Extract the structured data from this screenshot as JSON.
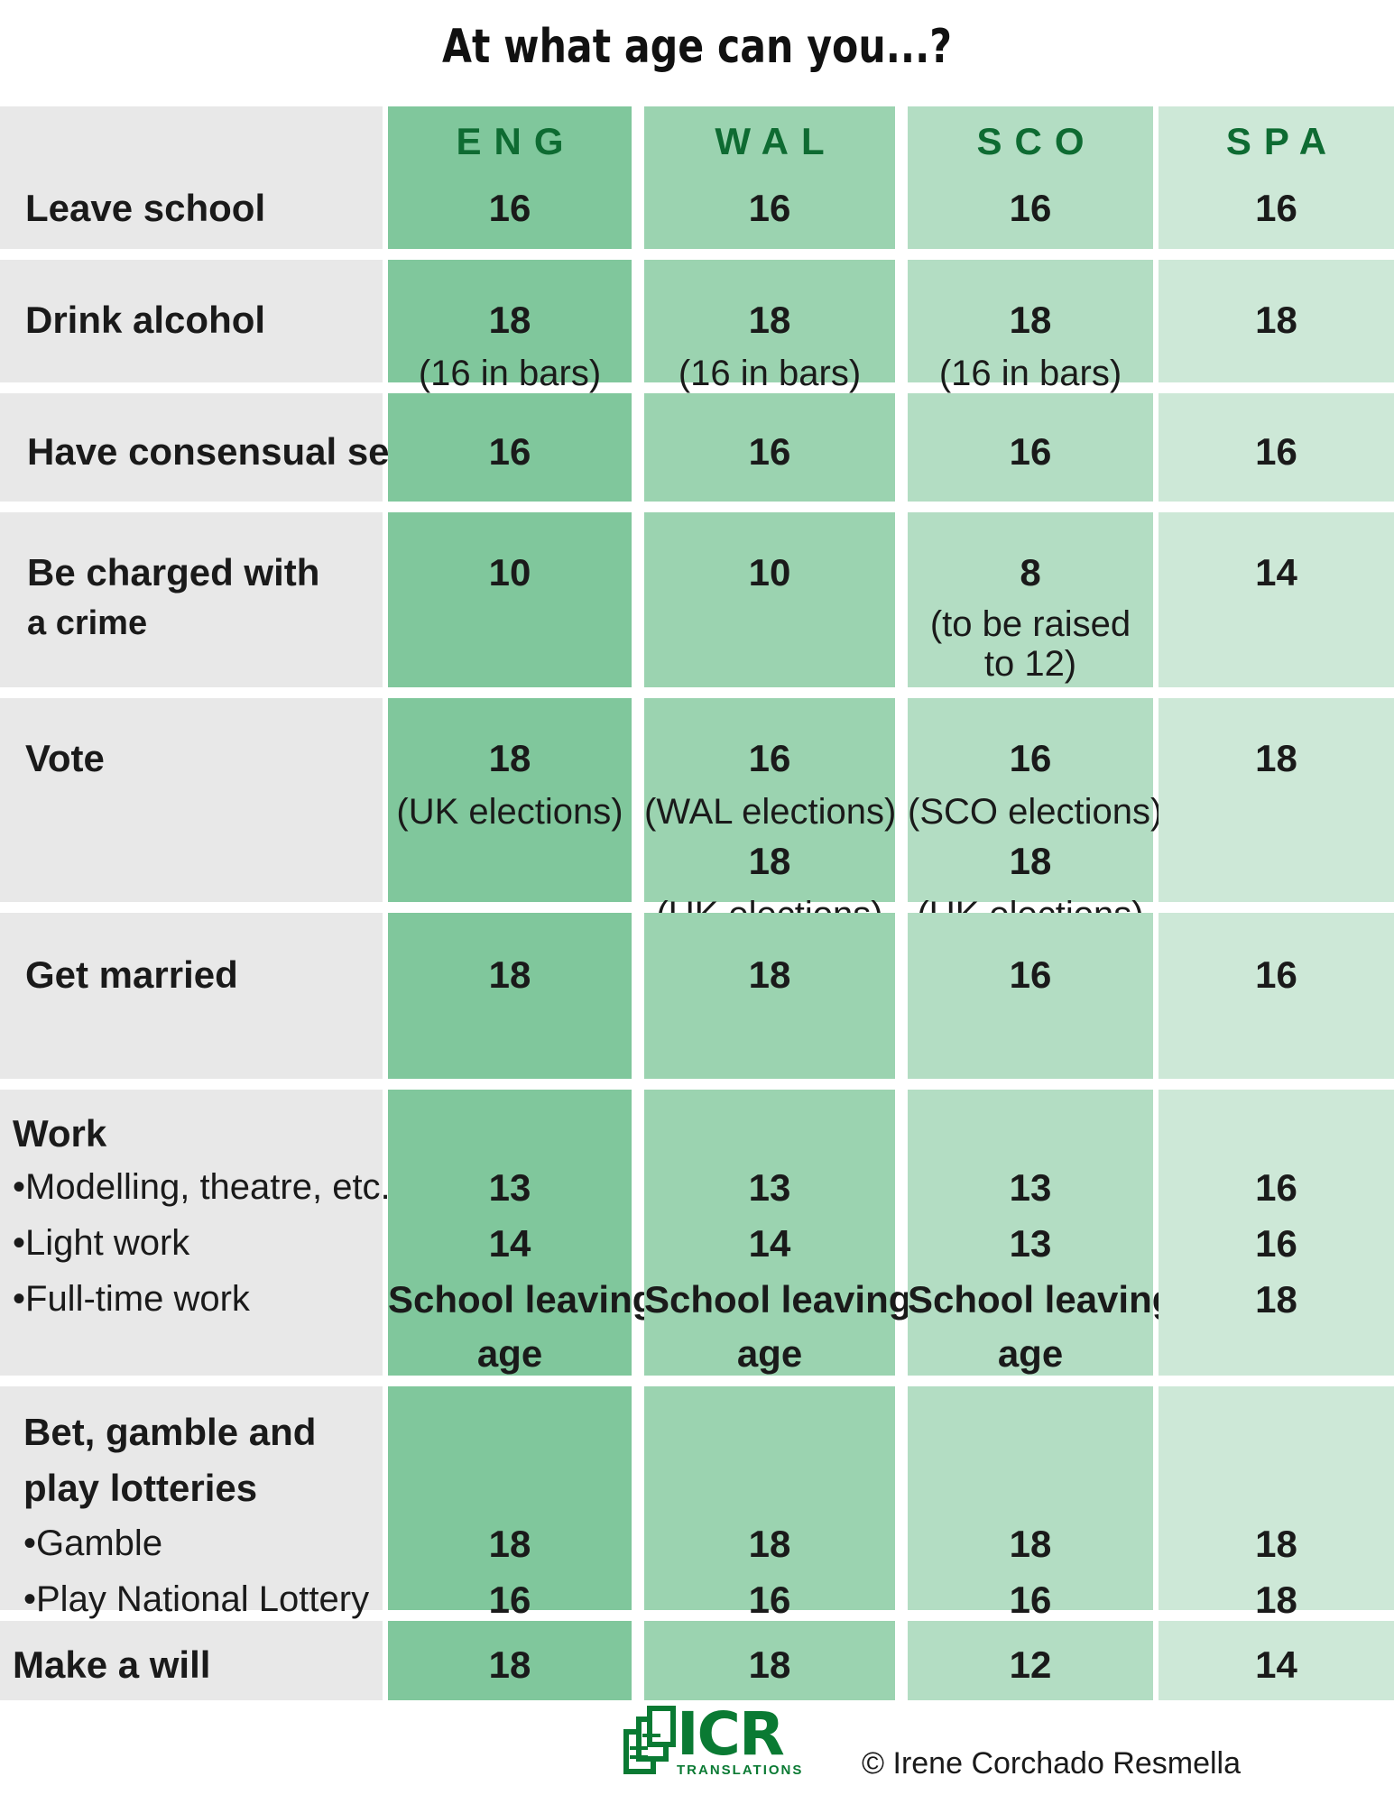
{
  "chart_data": {
    "type": "table",
    "title": "At what age can you...?",
    "columns": [
      "ENG",
      "WAL",
      "SCO",
      "SPA"
    ],
    "rows": [
      {
        "label": [
          "Leave school"
        ],
        "cells": [
          [
            "16"
          ],
          [
            "16"
          ],
          [
            "16"
          ],
          [
            "16"
          ]
        ]
      },
      {
        "label": [
          "Drink alcohol"
        ],
        "cells": [
          [
            "18",
            "(16 in bars)"
          ],
          [
            "18",
            "(16 in bars)"
          ],
          [
            "18",
            "(16 in bars)"
          ],
          [
            "18"
          ]
        ]
      },
      {
        "label": [
          "Have consensual sex"
        ],
        "cells": [
          [
            "16"
          ],
          [
            "16"
          ],
          [
            "16"
          ],
          [
            "16"
          ]
        ]
      },
      {
        "label": [
          "Be charged with",
          "a crime"
        ],
        "cells": [
          [
            "10"
          ],
          [
            "10"
          ],
          [
            "8",
            "(to be raised",
            "to 12)"
          ],
          [
            "14"
          ]
        ]
      },
      {
        "label": [
          "Vote"
        ],
        "cells": [
          [
            "18",
            "(UK elections)"
          ],
          [
            "16",
            "(WAL elections)",
            "18",
            "(UK elections)"
          ],
          [
            "16",
            "(SCO elections)",
            "18",
            "(UK elections)"
          ],
          [
            "18"
          ]
        ]
      },
      {
        "label": [
          "Get married"
        ],
        "cells": [
          [
            "18"
          ],
          [
            "18"
          ],
          [
            "16"
          ],
          [
            "16"
          ]
        ]
      },
      {
        "label": [
          "Work",
          "•Modelling, theatre, etc.",
          "•Light work",
          "•Full-time work"
        ],
        "cells": [
          [
            "13",
            "14",
            "School leaving",
            "age"
          ],
          [
            "13",
            "14",
            "School leaving",
            "age"
          ],
          [
            "13",
            "13",
            "School leaving",
            "age"
          ],
          [
            "16",
            "16",
            "18"
          ]
        ]
      },
      {
        "label": [
          "Bet, gamble and",
          "play lotteries",
          "•Gamble",
          "•Play National Lottery"
        ],
        "cells": [
          [
            "18",
            "16"
          ],
          [
            "18",
            "16"
          ],
          [
            "18",
            "16"
          ],
          [
            "18",
            "18"
          ]
        ]
      },
      {
        "label": [
          "Make a will"
        ],
        "cells": [
          [
            "18"
          ],
          [
            "18"
          ],
          [
            "12"
          ],
          [
            "14"
          ]
        ]
      }
    ]
  },
  "footer": {
    "logo_text": "ICR",
    "logo_subtext": "TRANSLATIONS",
    "copyright": "© Irene Corchado Resmella"
  },
  "colors": {
    "column_fills": [
      "#80c79c",
      "#9bd3b0",
      "#b3ddc3",
      "#cde8d7"
    ],
    "label_fill": "#e8e8e8",
    "header_text": "#0e6b32",
    "logo": "#0a7a33"
  }
}
